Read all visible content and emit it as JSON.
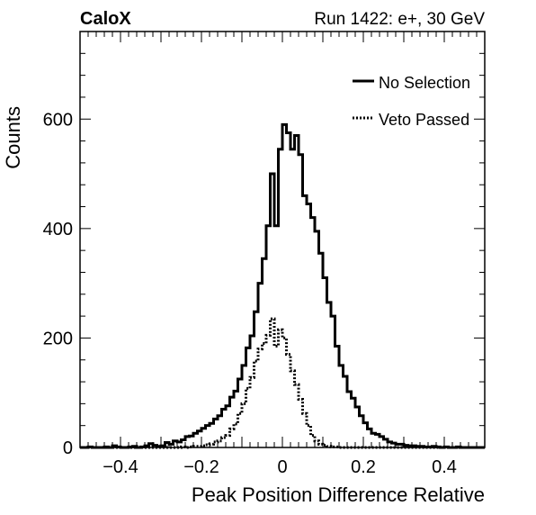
{
  "header": {
    "experiment": "CaloX",
    "run_info": "Run 1422: e+, 30 GeV"
  },
  "chart_data": {
    "type": "line",
    "title": "",
    "xlabel": "Peak Position Difference Relative",
    "ylabel": "Counts",
    "xlim": [
      -0.5,
      0.5
    ],
    "ylim": [
      0,
      760
    ],
    "x_ticks": [
      -0.4,
      -0.2,
      0,
      0.2,
      0.4
    ],
    "x_tick_labels": [
      "−0.4",
      "−0.2",
      "0",
      "0.2",
      "0.4"
    ],
    "y_ticks": [
      0,
      200,
      400,
      600
    ],
    "y_tick_labels": [
      "0",
      "200",
      "400",
      "600"
    ],
    "grid": false,
    "legend_position": "top-right",
    "bin_width": 0.01,
    "x": [
      -0.495,
      -0.485,
      -0.475,
      -0.465,
      -0.455,
      -0.445,
      -0.435,
      -0.425,
      -0.415,
      -0.405,
      -0.395,
      -0.385,
      -0.375,
      -0.365,
      -0.355,
      -0.345,
      -0.335,
      -0.325,
      -0.315,
      -0.305,
      -0.295,
      -0.285,
      -0.275,
      -0.265,
      -0.255,
      -0.245,
      -0.235,
      -0.225,
      -0.215,
      -0.205,
      -0.195,
      -0.185,
      -0.175,
      -0.165,
      -0.155,
      -0.145,
      -0.135,
      -0.125,
      -0.115,
      -0.105,
      -0.095,
      -0.085,
      -0.075,
      -0.065,
      -0.055,
      -0.045,
      -0.035,
      -0.025,
      -0.015,
      -0.005,
      0.005,
      0.015,
      0.025,
      0.035,
      0.045,
      0.055,
      0.065,
      0.075,
      0.085,
      0.095,
      0.105,
      0.115,
      0.125,
      0.135,
      0.145,
      0.155,
      0.165,
      0.175,
      0.185,
      0.195,
      0.205,
      0.215,
      0.225,
      0.235,
      0.245,
      0.255,
      0.265,
      0.275,
      0.285,
      0.295,
      0.305,
      0.315,
      0.325,
      0.335,
      0.345,
      0.355,
      0.365,
      0.375,
      0.385,
      0.395,
      0.405,
      0.415,
      0.425,
      0.435,
      0.445,
      0.455,
      0.465,
      0.475,
      0.485,
      0.495
    ],
    "series": [
      {
        "name": "No Selection",
        "style": "solid",
        "color": "#000000",
        "values": [
          0,
          0,
          1,
          0,
          0,
          0,
          1,
          0,
          3,
          1,
          0,
          0,
          1,
          2,
          0,
          1,
          3,
          7,
          4,
          2,
          3,
          9,
          6,
          12,
          10,
          14,
          20,
          21,
          26,
          30,
          35,
          40,
          44,
          52,
          58,
          70,
          76,
          92,
          103,
          125,
          150,
          182,
          204,
          248,
          300,
          345,
          405,
          500,
          405,
          545,
          590,
          575,
          545,
          570,
          535,
          460,
          445,
          420,
          395,
          355,
          310,
          265,
          240,
          185,
          150,
          130,
          102,
          90,
          74,
          58,
          45,
          34,
          26,
          24,
          20,
          15,
          10,
          8,
          6,
          6,
          4,
          3,
          3,
          2,
          2,
          1,
          1,
          2,
          1,
          0,
          1,
          0,
          0,
          1,
          0,
          0,
          0,
          0,
          0,
          0
        ]
      },
      {
        "name": "Veto Passed",
        "style": "dotted",
        "color": "#000000",
        "values": [
          0,
          0,
          0,
          0,
          0,
          0,
          0,
          0,
          0,
          0,
          0,
          0,
          0,
          0,
          0,
          0,
          0,
          0,
          0,
          0,
          0,
          0,
          0,
          0,
          0,
          1,
          0,
          1,
          2,
          2,
          3,
          5,
          6,
          10,
          12,
          18,
          22,
          34,
          43,
          62,
          80,
          108,
          128,
          158,
          180,
          190,
          205,
          235,
          185,
          215,
          200,
          170,
          140,
          115,
          88,
          62,
          40,
          22,
          12,
          6,
          4,
          2,
          1,
          1,
          0,
          0,
          0,
          0,
          0,
          0,
          0,
          0,
          0,
          0,
          0,
          0,
          0,
          0,
          0,
          0,
          0,
          0,
          0,
          0,
          0,
          0,
          0,
          0,
          0,
          0,
          0,
          0,
          0,
          0,
          0,
          0,
          0,
          0,
          0,
          0
        ]
      }
    ]
  }
}
